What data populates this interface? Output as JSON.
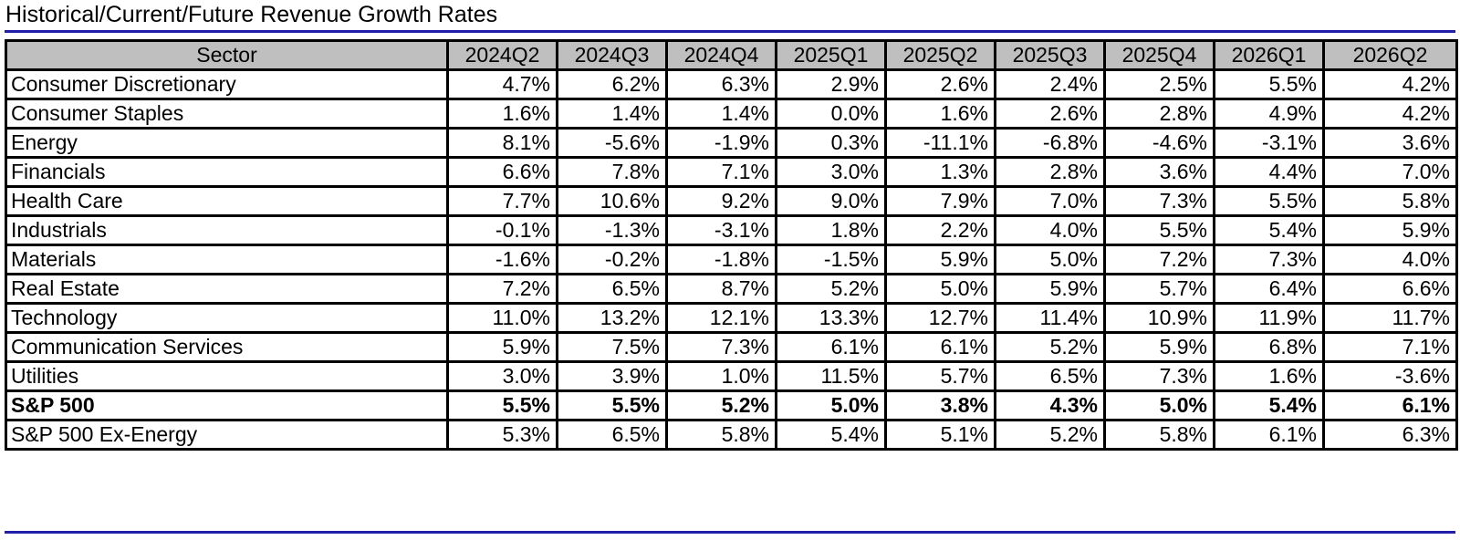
{
  "title": "Historical/Current/Future Revenue Growth Rates",
  "table": {
    "columns": [
      "Sector",
      "2024Q2",
      "2024Q3",
      "2024Q4",
      "2025Q1",
      "2025Q2",
      "2025Q3",
      "2025Q4",
      "2026Q1",
      "2026Q2"
    ],
    "rows": [
      {
        "sector": "Consumer Discretionary",
        "values": [
          "4.7%",
          "6.2%",
          "6.3%",
          "2.9%",
          "2.6%",
          "2.4%",
          "2.5%",
          "5.5%",
          "4.2%"
        ],
        "bold": false
      },
      {
        "sector": "Consumer Staples",
        "values": [
          "1.6%",
          "1.4%",
          "1.4%",
          "0.0%",
          "1.6%",
          "2.6%",
          "2.8%",
          "4.9%",
          "4.2%"
        ],
        "bold": false
      },
      {
        "sector": "Energy",
        "values": [
          "8.1%",
          "-5.6%",
          "-1.9%",
          "0.3%",
          "-11.1%",
          "-6.8%",
          "-4.6%",
          "-3.1%",
          "3.6%"
        ],
        "bold": false
      },
      {
        "sector": "Financials",
        "values": [
          "6.6%",
          "7.8%",
          "7.1%",
          "3.0%",
          "1.3%",
          "2.8%",
          "3.6%",
          "4.4%",
          "7.0%"
        ],
        "bold": false
      },
      {
        "sector": "Health Care",
        "values": [
          "7.7%",
          "10.6%",
          "9.2%",
          "9.0%",
          "7.9%",
          "7.0%",
          "7.3%",
          "5.5%",
          "5.8%"
        ],
        "bold": false
      },
      {
        "sector": "Industrials",
        "values": [
          "-0.1%",
          "-1.3%",
          "-3.1%",
          "1.8%",
          "2.2%",
          "4.0%",
          "5.5%",
          "5.4%",
          "5.9%"
        ],
        "bold": false
      },
      {
        "sector": "Materials",
        "values": [
          "-1.6%",
          "-0.2%",
          "-1.8%",
          "-1.5%",
          "5.9%",
          "5.0%",
          "7.2%",
          "7.3%",
          "4.0%"
        ],
        "bold": false
      },
      {
        "sector": "Real Estate",
        "values": [
          "7.2%",
          "6.5%",
          "8.7%",
          "5.2%",
          "5.0%",
          "5.9%",
          "5.7%",
          "6.4%",
          "6.6%"
        ],
        "bold": false
      },
      {
        "sector": "Technology",
        "values": [
          "11.0%",
          "13.2%",
          "12.1%",
          "13.3%",
          "12.7%",
          "11.4%",
          "10.9%",
          "11.9%",
          "11.7%"
        ],
        "bold": false
      },
      {
        "sector": "Communication Services",
        "values": [
          "5.9%",
          "7.5%",
          "7.3%",
          "6.1%",
          "6.1%",
          "5.2%",
          "5.9%",
          "6.8%",
          "7.1%"
        ],
        "bold": false
      },
      {
        "sector": "Utilities",
        "values": [
          "3.0%",
          "3.9%",
          "1.0%",
          "11.5%",
          "5.7%",
          "6.5%",
          "7.3%",
          "1.6%",
          "-3.6%"
        ],
        "bold": false
      },
      {
        "sector": "S&P 500",
        "values": [
          "5.5%",
          "5.5%",
          "5.2%",
          "5.0%",
          "3.8%",
          "4.3%",
          "5.0%",
          "5.4%",
          "6.1%"
        ],
        "bold": true
      },
      {
        "sector": "S&P 500 Ex-Energy",
        "values": [
          "5.3%",
          "6.5%",
          "5.8%",
          "5.4%",
          "5.1%",
          "5.2%",
          "5.8%",
          "6.1%",
          "6.3%"
        ],
        "bold": false
      }
    ]
  },
  "colors": {
    "header_bg": "#bfbfbf",
    "rule": "#1f1fa8",
    "border": "#000000"
  }
}
